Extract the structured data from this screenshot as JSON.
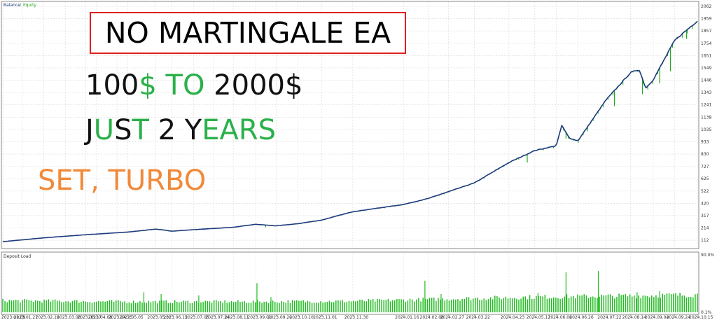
{
  "promo": {
    "title": "NO MARTINGALE EA",
    "line1": [
      {
        "text": "100",
        "color": "black"
      },
      {
        "text": "$ TO",
        "color": "green"
      },
      {
        "text": " 2000$",
        "color": "black"
      }
    ],
    "line2": [
      {
        "text": "J",
        "color": "black"
      },
      {
        "text": "U",
        "color": "green"
      },
      {
        "text": "S",
        "color": "black"
      },
      {
        "text": "T",
        "color": "green"
      },
      {
        "text": " 2 Y",
        "color": "black"
      },
      {
        "text": "EARS",
        "color": "green"
      }
    ],
    "line3": [
      {
        "text": "SET, TURBO",
        "color": "orange"
      }
    ],
    "colors": {
      "black": "#111111",
      "green": "#2bb04a",
      "orange": "#f08a3a",
      "box": "#e02020"
    }
  },
  "chart_data": [
    {
      "type": "line",
      "legend": [
        "Balance",
        "Equity"
      ],
      "legend_placement": "top-left",
      "series": [
        {
          "name": "Balance",
          "color": "#1a3a7a",
          "points": [
            [
              "2023.01.09",
              100
            ],
            [
              "2023.02.16",
              132
            ],
            [
              "2023.03.27",
              158
            ],
            [
              "2023.05.05",
              180
            ],
            [
              "2023.05.31",
              205
            ],
            [
              "2023.06.15",
              188
            ],
            [
              "2023.07.05",
              200
            ],
            [
              "2023.08.11",
              220
            ],
            [
              "2023.09.01",
              245
            ],
            [
              "2023.09.20",
              232
            ],
            [
              "2023.10.10",
              250
            ],
            [
              "2023.11.01",
              280
            ],
            [
              "2023.11.30",
              350
            ],
            [
              "2024.01.16",
              410
            ],
            [
              "2024.02.08",
              460
            ],
            [
              "2024.03.22",
              590
            ],
            [
              "2024.04.23",
              760
            ],
            [
              "2024.05.17",
              860
            ],
            [
              "2024.06.06",
              900
            ],
            [
              "2024.06.11",
              1070
            ],
            [
              "2024.06.18",
              965
            ],
            [
              "2024.06.26",
              940
            ],
            [
              "2024.07.22",
              1280
            ],
            [
              "2024.08.14",
              1510
            ],
            [
              "2024.08.22",
              1535
            ],
            [
              "2024.08.28",
              1380
            ],
            [
              "2024.09.04",
              1450
            ],
            [
              "2024.09.24",
              1780
            ],
            [
              "2024.10.15",
              1940
            ]
          ]
        },
        {
          "name": "Equity",
          "color": "#22aa22",
          "dips": [
            [
              "2023.09.10",
              220
            ],
            [
              "2024.05.10",
              760
            ],
            [
              "2024.06.15",
              960
            ],
            [
              "2024.07.05",
              1020
            ],
            [
              "2024.07.30",
              1230
            ],
            [
              "2024.08.25",
              1330
            ],
            [
              "2024.09.10",
              1420
            ],
            [
              "2024.09.20",
              1520
            ],
            [
              "2024.10.05",
              1790
            ]
          ]
        }
      ],
      "y_ticks": [
        112,
        214,
        317,
        420,
        522,
        625,
        727,
        830,
        933,
        1035,
        1138,
        1241,
        1343,
        1446,
        1549,
        1651,
        1754,
        1857,
        1959,
        2062
      ],
      "ylim": [
        60,
        2080
      ],
      "grid": true
    },
    {
      "type": "bar",
      "title": "Deposit Load",
      "ylim": [
        0,
        90
      ],
      "y_ticks": [
        "90.0%",
        "0.1%"
      ],
      "x_ticks": [
        "2023.01.09",
        "2023.01.27",
        "2023.02.16",
        "2023.03.08",
        "2023.03.27",
        "2023.04.06",
        "2023.04.25",
        "2023.05.05",
        "2023.05.31",
        "2023.06.15",
        "2023.07.05",
        "2023.07.24",
        "2023.08.11",
        "2023.09.01",
        "2023.09.20",
        "2023.10.10",
        "2023.11.01",
        "2023.11.30",
        "2024.01.16",
        "2024.02.08",
        "2024.02.27",
        "2024.03.22",
        "2024.04.23",
        "2024.05.17",
        "2024.06.06",
        "2024.06.26",
        "2024.07.22",
        "2024.08.14",
        "2024.09.04",
        "2024.09.24",
        "2024.10.15"
      ],
      "bar_color": "#22bb22",
      "baseline_load": [
        [
          "2023.01.09",
          20
        ],
        [
          "2023.05.05",
          18
        ],
        [
          "2023.09.01",
          18
        ],
        [
          "2023.11.30",
          19
        ],
        [
          "2024.02.08",
          22
        ],
        [
          "2024.05.17",
          26
        ],
        [
          "2024.08.14",
          28
        ],
        [
          "2024.10.15",
          30
        ]
      ],
      "spikes": [
        [
          "2023.05.20",
          33
        ],
        [
          "2023.06.05",
          30
        ],
        [
          "2023.07.10",
          28
        ],
        [
          "2023.09.02",
          48
        ],
        [
          "2023.09.15",
          25
        ],
        [
          "2024.02.05",
          52
        ],
        [
          "2024.02.20",
          30
        ],
        [
          "2024.05.20",
          32
        ],
        [
          "2024.06.15",
          66
        ],
        [
          "2024.07.15",
          68
        ],
        [
          "2024.08.20",
          33
        ],
        [
          "2024.09.10",
          35
        ]
      ]
    }
  ]
}
